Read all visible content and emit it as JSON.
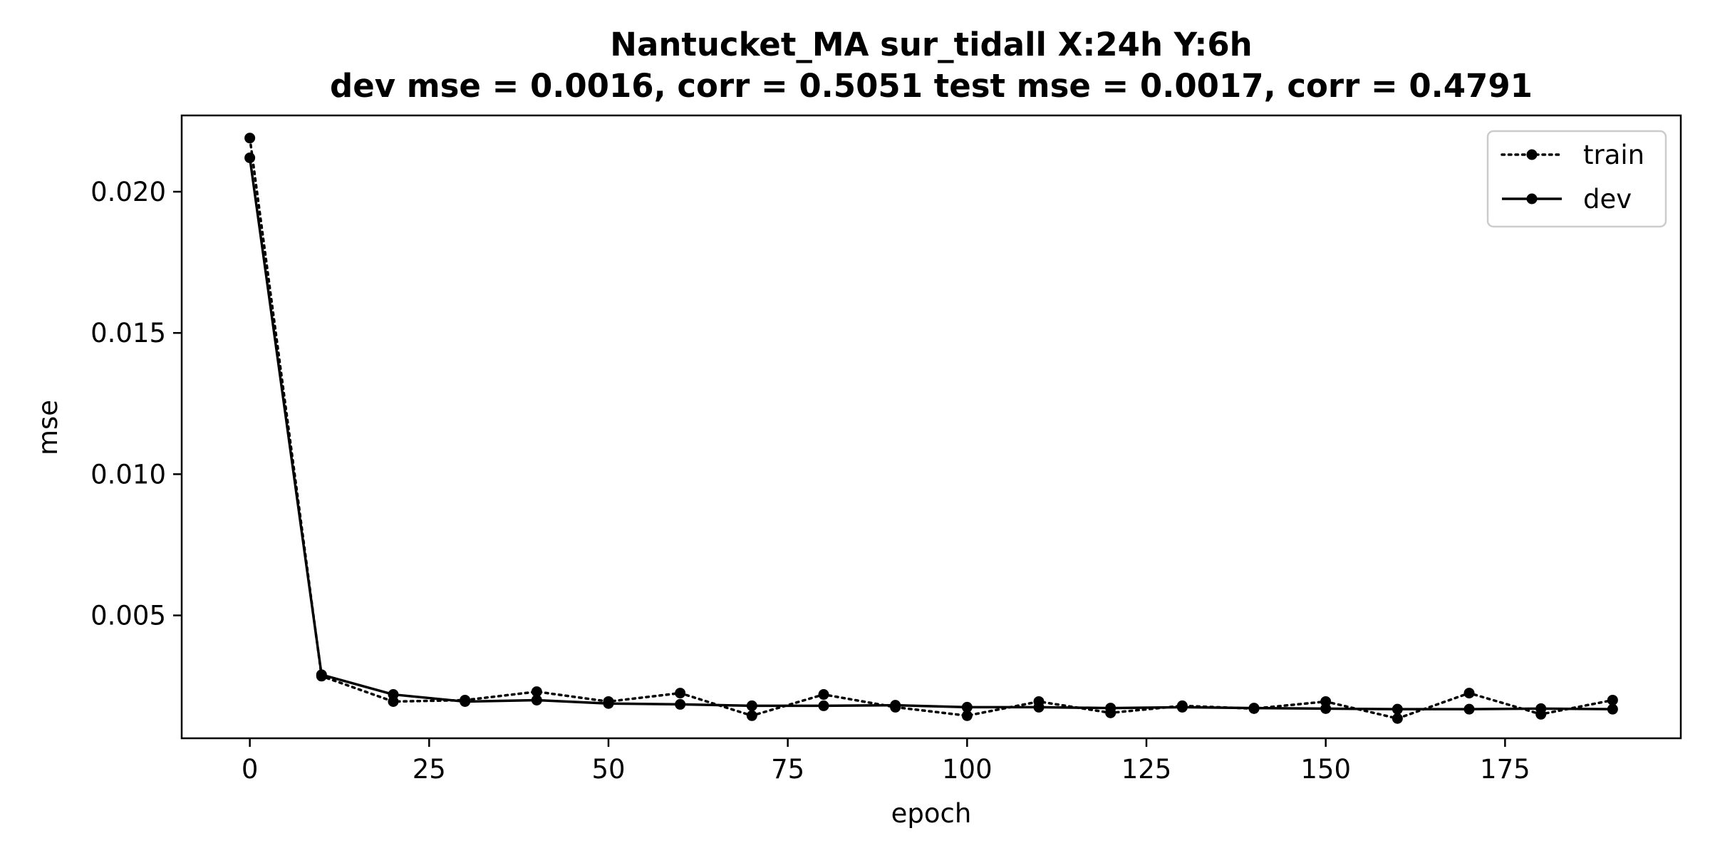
{
  "chart_data": {
    "type": "line",
    "title": "Nantucket_MA   sur_tidall   X:24h   Y:6h",
    "subtitle": "dev mse = 0.0016, corr = 0.5051   test mse = 0.0017, corr = 0.4791",
    "xlabel": "epoch",
    "ylabel": "mse",
    "xlim": [
      -9.5,
      199.5
    ],
    "ylim": [
      0.00065,
      0.0227
    ],
    "x_ticks": [
      0,
      25,
      50,
      75,
      100,
      125,
      150,
      175
    ],
    "x_tick_labels": [
      "0",
      "25",
      "50",
      "75",
      "100",
      "125",
      "150",
      "175"
    ],
    "y_ticks": [
      0.005,
      0.01,
      0.015,
      0.02
    ],
    "y_tick_labels": [
      "0.005",
      "0.010",
      "0.015",
      "0.020"
    ],
    "grid": false,
    "legend_position": "top-right",
    "x": [
      0,
      10,
      20,
      30,
      40,
      50,
      60,
      70,
      80,
      90,
      100,
      110,
      120,
      130,
      140,
      150,
      160,
      170,
      180,
      190
    ],
    "series": [
      {
        "name": "train",
        "style": "dotted",
        "marker": "dot",
        "color": "#000000",
        "values": [
          0.0219,
          0.00285,
          0.00195,
          0.002,
          0.0023,
          0.00195,
          0.00225,
          0.00145,
          0.0022,
          0.00175,
          0.00145,
          0.00195,
          0.00155,
          0.0018,
          0.0017,
          0.00195,
          0.00135,
          0.00225,
          0.0015,
          0.002
        ]
      },
      {
        "name": "dev",
        "style": "solid",
        "marker": "dot",
        "color": "#000000",
        "values": [
          0.0212,
          0.0029,
          0.0022,
          0.00195,
          0.002,
          0.00188,
          0.00185,
          0.0018,
          0.0018,
          0.00182,
          0.00175,
          0.00175,
          0.00172,
          0.00175,
          0.00172,
          0.0017,
          0.00168,
          0.00168,
          0.0017,
          0.00168
        ]
      }
    ]
  }
}
